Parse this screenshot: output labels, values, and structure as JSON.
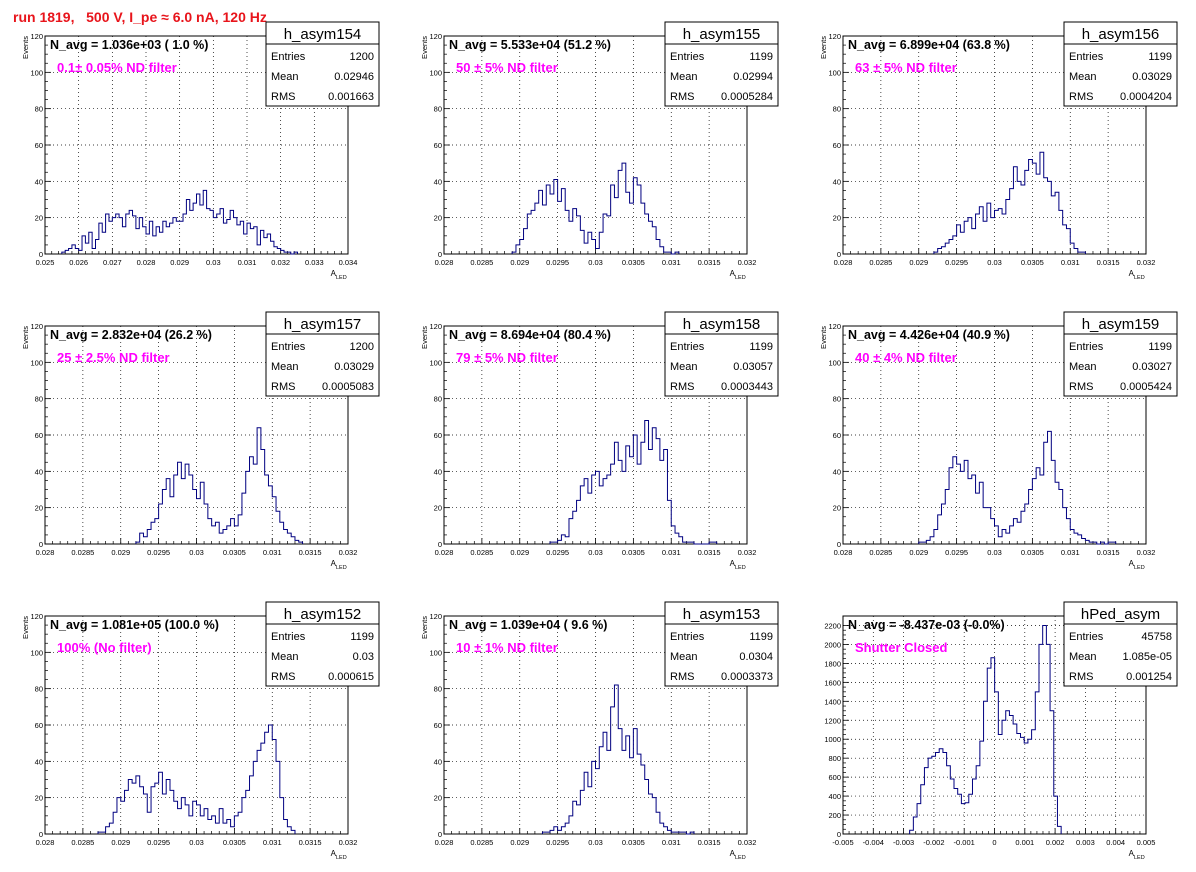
{
  "page_title": "run 1819,   500 V, I_pe ≈ 6.0 nA, 120 Hz",
  "colors": {
    "line": "#000080",
    "title": "#e8141b",
    "label": "#ff00ff",
    "grid": "#000000"
  },
  "chart_data": [
    {
      "type": "histogram",
      "name": "h_asym154",
      "navg": "N_avg = 1.036e+03 ( 1.0 %)",
      "label": "0.1± 0.05% ND filter",
      "stats": [
        [
          "Entries",
          "1200"
        ],
        [
          "Mean",
          "0.02946"
        ],
        [
          "RMS",
          "0.001663"
        ]
      ],
      "ylabel": "Events",
      "xlabel": "A",
      "xlabel_sub": "LED",
      "xlim": [
        0.025,
        0.034
      ],
      "ylim": [
        0,
        120
      ],
      "xticks": [
        "0.025",
        "0.026",
        "0.027",
        "0.028",
        "0.029",
        "0.03",
        "0.031",
        "0.032",
        "0.033",
        "0.034"
      ],
      "yticks": [
        "0",
        "20",
        "40",
        "60",
        "80",
        "100",
        "120"
      ],
      "bin_edges": [
        0.0255,
        0.0325
      ],
      "values": [
        1,
        2,
        3,
        5,
        3,
        2,
        10,
        6,
        12,
        3,
        8,
        17,
        12,
        22,
        18,
        20,
        22,
        20,
        15,
        22,
        24,
        21,
        14,
        20,
        15,
        11,
        18,
        10,
        15,
        12,
        18,
        15,
        17,
        20,
        18,
        18,
        22,
        30,
        24,
        28,
        33,
        27,
        35,
        25,
        24,
        20,
        22,
        25,
        17,
        19,
        24,
        20,
        16,
        18,
        11,
        17,
        14,
        15,
        5,
        13,
        9,
        11,
        7,
        4,
        3,
        2,
        1,
        1,
        0,
        1
      ]
    },
    {
      "type": "histogram",
      "name": "h_asym155",
      "navg": "N_avg = 5.533e+04 (51.2 %)",
      "label": "50 ± 5% ND filter",
      "stats": [
        [
          "Entries",
          "1199"
        ],
        [
          "Mean",
          "0.02994"
        ],
        [
          "RMS",
          "0.0005284"
        ]
      ],
      "ylabel": "Events",
      "xlabel": "A",
      "xlabel_sub": "LED",
      "xlim": [
        0.028,
        0.032
      ],
      "ylim": [
        0,
        120
      ],
      "xticks": [
        "0.028",
        "0.0285",
        "0.029",
        "0.0295",
        "0.03",
        "0.0305",
        "0.031",
        "0.0315",
        "0.032"
      ],
      "yticks": [
        "0",
        "20",
        "40",
        "60",
        "80",
        "100",
        "120"
      ],
      "bin_edges": [
        0.0289,
        0.0311
      ],
      "values": [
        1,
        5,
        8,
        14,
        22,
        24,
        28,
        35,
        27,
        38,
        33,
        41,
        29,
        36,
        24,
        18,
        25,
        21,
        13,
        6,
        12,
        8,
        3,
        12,
        22,
        21,
        38,
        31,
        46,
        50,
        34,
        28,
        42,
        38,
        28,
        22,
        18,
        15,
        8,
        4,
        1,
        1,
        0,
        1
      ]
    },
    {
      "type": "histogram",
      "name": "h_asym156",
      "navg": "N_avg = 6.899e+04 (63.8 %)",
      "label": "63 ± 5% ND filter",
      "stats": [
        [
          "Entries",
          "1199"
        ],
        [
          "Mean",
          "0.03029"
        ],
        [
          "RMS",
          "0.0004204"
        ]
      ],
      "ylabel": "Events",
      "xlabel": "A",
      "xlabel_sub": "LED",
      "xlim": [
        0.028,
        0.032
      ],
      "ylim": [
        0,
        120
      ],
      "xticks": [
        "0.028",
        "0.0285",
        "0.029",
        "0.0295",
        "0.03",
        "0.0305",
        "0.031",
        "0.0315",
        "0.032"
      ],
      "yticks": [
        "0",
        "20",
        "40",
        "60",
        "80",
        "100",
        "120"
      ],
      "bin_edges": [
        0.0292,
        0.0312
      ],
      "values": [
        1,
        3,
        4,
        6,
        8,
        10,
        16,
        12,
        18,
        20,
        14,
        22,
        26,
        18,
        28,
        20,
        24,
        25,
        22,
        30,
        36,
        48,
        40,
        38,
        46,
        52,
        50,
        44,
        56,
        42,
        40,
        32,
        34,
        24,
        16,
        14,
        6,
        3,
        1,
        1
      ]
    },
    {
      "type": "histogram",
      "name": "h_asym157",
      "navg": "N_avg = 2.832e+04 (26.2 %)",
      "label": "25 ± 2.5% ND filter",
      "stats": [
        [
          "Entries",
          "1200"
        ],
        [
          "Mean",
          "0.03029"
        ],
        [
          "RMS",
          "0.0005083"
        ]
      ],
      "ylabel": "Events",
      "xlabel": "A",
      "xlabel_sub": "LED",
      "xlim": [
        0.028,
        0.032
      ],
      "ylim": [
        0,
        120
      ],
      "xticks": [
        "0.028",
        "0.0285",
        "0.029",
        "0.0295",
        "0.03",
        "0.0305",
        "0.031",
        "0.0315",
        "0.032"
      ],
      "yticks": [
        "0",
        "20",
        "40",
        "60",
        "80",
        "100",
        "120"
      ],
      "bin_edges": [
        0.0292,
        0.0314
      ],
      "values": [
        1,
        6,
        4,
        8,
        12,
        14,
        22,
        30,
        36,
        26,
        38,
        45,
        36,
        44,
        38,
        30,
        25,
        34,
        22,
        14,
        10,
        12,
        6,
        8,
        10,
        14,
        10,
        16,
        28,
        40,
        48,
        44,
        64,
        52,
        38,
        32,
        26,
        18,
        12,
        8,
        6,
        4,
        2,
        1
      ]
    },
    {
      "type": "histogram",
      "name": "h_asym158",
      "navg": "N_avg = 8.694e+04 (80.4 %)",
      "label": "79 ± 5% ND filter",
      "stats": [
        [
          "Entries",
          "1199"
        ],
        [
          "Mean",
          "0.03057"
        ],
        [
          "RMS",
          "0.0003443"
        ]
      ],
      "ylabel": "Events",
      "xlabel": "A",
      "xlabel_sub": "LED",
      "xlim": [
        0.028,
        0.032
      ],
      "ylim": [
        0,
        120
      ],
      "xticks": [
        "0.028",
        "0.0285",
        "0.029",
        "0.0295",
        "0.03",
        "0.0305",
        "0.031",
        "0.0315",
        "0.032"
      ],
      "yticks": [
        "0",
        "20",
        "40",
        "60",
        "80",
        "100",
        "120"
      ],
      "bin_edges": [
        0.0294,
        0.0316
      ],
      "values": [
        1,
        1,
        2,
        5,
        4,
        14,
        18,
        24,
        32,
        36,
        28,
        38,
        40,
        32,
        36,
        38,
        44,
        56,
        46,
        40,
        54,
        48,
        60,
        44,
        56,
        68,
        52,
        64,
        58,
        46,
        52,
        24,
        10,
        6,
        4,
        1,
        1,
        1,
        0,
        0,
        0,
        0,
        1,
        1
      ]
    },
    {
      "type": "histogram",
      "name": "h_asym159",
      "navg": "N_avg = 4.426e+04 (40.9 %)",
      "label": "40 ± 4% ND filter",
      "stats": [
        [
          "Entries",
          "1199"
        ],
        [
          "Mean",
          "0.03027"
        ],
        [
          "RMS",
          "0.0005424"
        ]
      ],
      "ylabel": "Events",
      "xlabel": "A",
      "xlabel_sub": "LED",
      "xlim": [
        0.028,
        0.032
      ],
      "ylim": [
        0,
        120
      ],
      "xticks": [
        "0.028",
        "0.0285",
        "0.029",
        "0.0295",
        "0.03",
        "0.0305",
        "0.031",
        "0.0315",
        "0.032"
      ],
      "yticks": [
        "0",
        "20",
        "40",
        "60",
        "80",
        "100",
        "120"
      ],
      "bin_edges": [
        0.029,
        0.0316
      ],
      "values": [
        1,
        1,
        2,
        4,
        8,
        16,
        22,
        30,
        42,
        48,
        44,
        40,
        46,
        36,
        38,
        28,
        34,
        20,
        20,
        14,
        10,
        4,
        8,
        6,
        10,
        14,
        12,
        18,
        22,
        30,
        36,
        42,
        38,
        56,
        62,
        46,
        34,
        30,
        20,
        14,
        8,
        6,
        5,
        3,
        2,
        1,
        1,
        0,
        1,
        0,
        1,
        1
      ]
    },
    {
      "type": "histogram",
      "name": "h_asym152",
      "navg": "N_avg = 1.081e+05 (100.0 %)",
      "label": "100% (No filter)",
      "stats": [
        [
          "Entries",
          "1199"
        ],
        [
          "Mean",
          "0.03"
        ],
        [
          "RMS",
          "0.000615"
        ]
      ],
      "ylabel": "Events",
      "xlabel": "A",
      "xlabel_sub": "LED",
      "xlim": [
        0.028,
        0.032
      ],
      "ylim": [
        0,
        120
      ],
      "xticks": [
        "0.028",
        "0.0285",
        "0.029",
        "0.0295",
        "0.03",
        "0.0305",
        "0.031",
        "0.0315",
        "0.032"
      ],
      "yticks": [
        "0",
        "20",
        "40",
        "60",
        "80",
        "100",
        "120"
      ],
      "bin_edges": [
        0.0287,
        0.0313
      ],
      "values": [
        1,
        1,
        4,
        6,
        12,
        20,
        18,
        24,
        30,
        28,
        32,
        26,
        22,
        12,
        26,
        28,
        34,
        22,
        30,
        24,
        18,
        14,
        20,
        16,
        10,
        18,
        16,
        10,
        14,
        8,
        10,
        6,
        14,
        6,
        8,
        4,
        10,
        12,
        20,
        24,
        32,
        40,
        46,
        50,
        56,
        60,
        52,
        40,
        20,
        8,
        4,
        2
      ]
    },
    {
      "type": "histogram",
      "name": "h_asym153",
      "navg": "N_avg = 1.039e+04 ( 9.6 %)",
      "label": "10 ± 1% ND filter",
      "stats": [
        [
          "Entries",
          "1199"
        ],
        [
          "Mean",
          "0.0304"
        ],
        [
          "RMS",
          "0.0003373"
        ]
      ],
      "ylabel": "Events",
      "xlabel": "A",
      "xlabel_sub": "LED",
      "xlim": [
        0.028,
        0.032
      ],
      "ylim": [
        0,
        120
      ],
      "xticks": [
        "0.028",
        "0.0285",
        "0.029",
        "0.0295",
        "0.03",
        "0.0305",
        "0.031",
        "0.0315",
        "0.032"
      ],
      "yticks": [
        "0",
        "20",
        "40",
        "60",
        "80",
        "100",
        "120"
      ],
      "bin_edges": [
        0.0293,
        0.0313
      ],
      "values": [
        1,
        1,
        2,
        4,
        2,
        4,
        6,
        10,
        18,
        16,
        24,
        34,
        26,
        40,
        36,
        48,
        56,
        46,
        70,
        82,
        58,
        46,
        54,
        42,
        58,
        44,
        38,
        30,
        22,
        20,
        12,
        6,
        4,
        2,
        1,
        1,
        1,
        1,
        0,
        1
      ]
    },
    {
      "type": "histogram",
      "name": "hPed_asym",
      "navg": "N_avg = -8.437e-03 (-0.0%)",
      "label": "Shutter Closed",
      "stats": [
        [
          "Entries",
          "45758"
        ],
        [
          "Mean",
          "1.085e-05"
        ],
        [
          "RMS",
          "0.001254"
        ]
      ],
      "ylabel": "",
      "xlabel": "A",
      "xlabel_sub": "LED",
      "xlim": [
        -0.005,
        0.005
      ],
      "ylim": [
        0,
        2300
      ],
      "xticks": [
        "-0.005",
        "-0.004",
        "-0.003",
        "-0.002",
        "-0.001",
        "0",
        "0.001",
        "0.002",
        "0.003",
        "0.004",
        "0.005"
      ],
      "yticks": [
        "0",
        "200",
        "400",
        "600",
        "800",
        "1000",
        "1200",
        "1400",
        "1600",
        "1800",
        "2000",
        "2200"
      ],
      "bin_edges": [
        -0.0028,
        0.0022
      ],
      "values": [
        40,
        180,
        320,
        520,
        700,
        800,
        820,
        860,
        900,
        860,
        720,
        580,
        480,
        420,
        320,
        330,
        420,
        580,
        720,
        980,
        1400,
        1750,
        1860,
        1500,
        1050,
        1200,
        1300,
        1250,
        1160,
        1060,
        1020,
        960,
        1000,
        1100,
        1500,
        2000,
        2200,
        2000,
        1300,
        400,
        80
      ]
    }
  ]
}
